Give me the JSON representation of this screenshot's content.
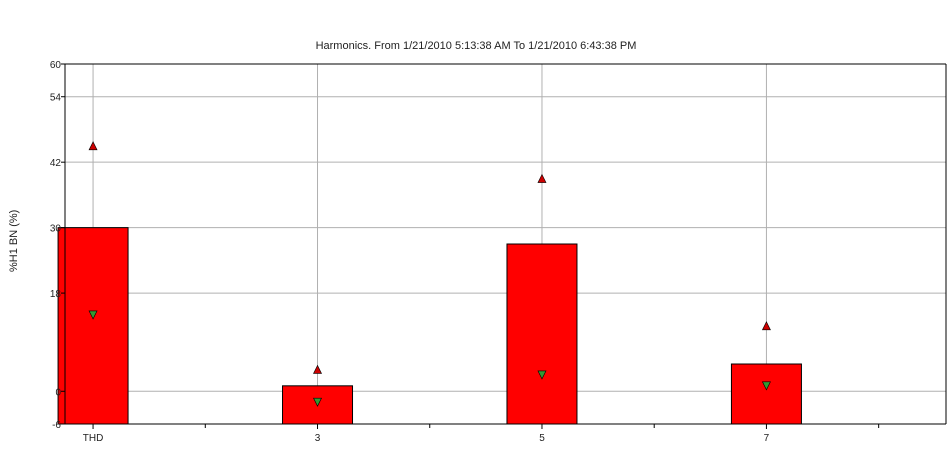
{
  "chart_data": {
    "type": "box",
    "title": "Harmonics. From 1/21/2010 5:13:38 AM To 1/21/2010 6:43:38 PM",
    "ylabel": "%H1 BN (%)",
    "xlabel": "",
    "ylim": [
      -6,
      60
    ],
    "yticks": [
      "60",
      "54",
      "42",
      "30",
      "18",
      "0",
      "-6"
    ],
    "ytick_values": [
      60,
      54,
      42,
      30,
      18,
      0,
      -6
    ],
    "x_ticks": [
      "THD",
      "3",
      "5",
      "7"
    ],
    "x_positions": [
      1,
      3,
      5,
      7
    ],
    "xlim": [
      0.75,
      8.6
    ],
    "grid": true,
    "colors": {
      "box": "#ff0000",
      "max_marker": "#cc0000",
      "avg_marker": "#339933"
    },
    "series": [
      {
        "category": "THD",
        "x": 1,
        "box_low": -6,
        "box_high": 30,
        "max": 45,
        "avg": 14
      },
      {
        "category": "3",
        "x": 3,
        "box_low": -6,
        "box_high": 1,
        "max": 4,
        "avg": -2
      },
      {
        "category": "5",
        "x": 5,
        "box_low": -6,
        "box_high": 27,
        "max": 39,
        "avg": 3
      },
      {
        "category": "7",
        "x": 7,
        "box_low": -6,
        "box_high": 5,
        "max": 12,
        "avg": 1
      }
    ]
  }
}
